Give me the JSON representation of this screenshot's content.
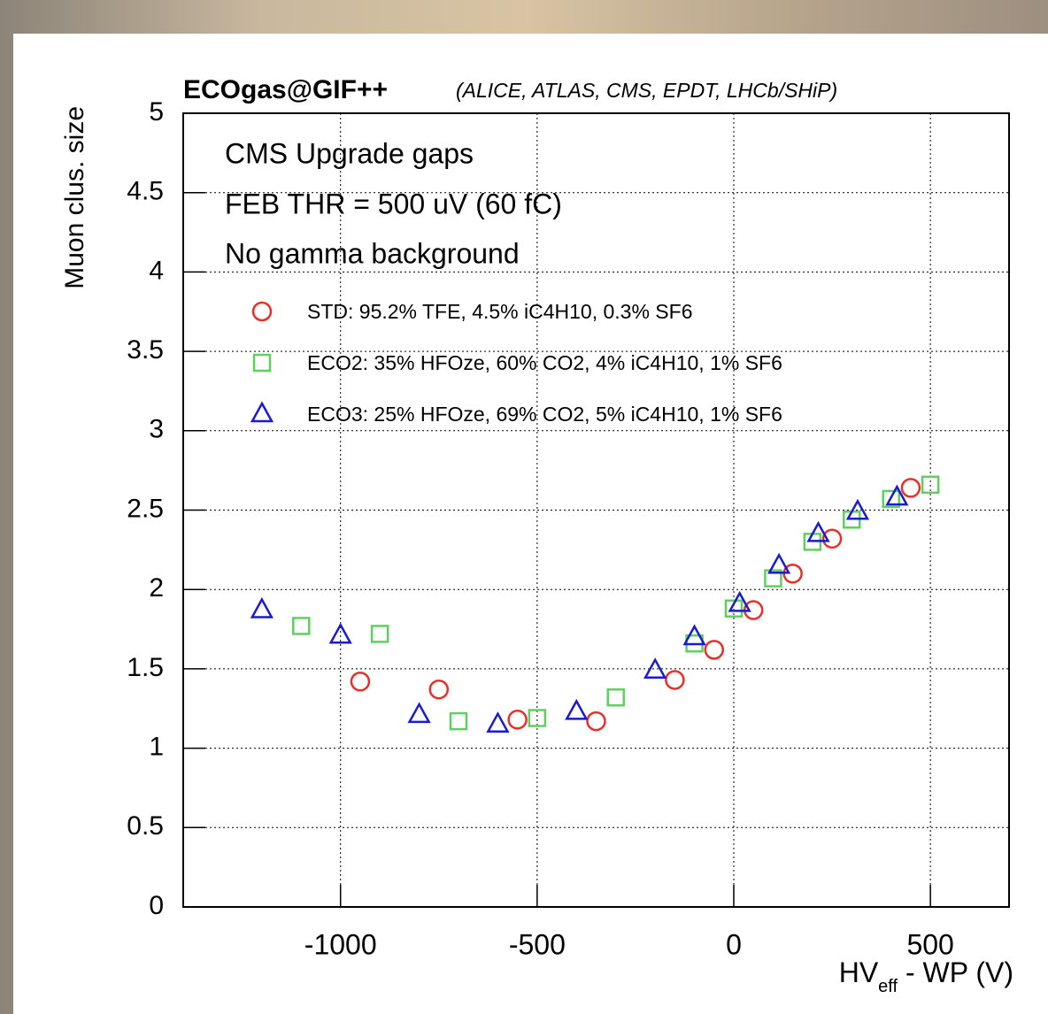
{
  "chart_data": {
    "type": "scatter",
    "title": "ECOgas@GIF++",
    "subtitle": "(ALICE, ATLAS, CMS, EPDT, LHCb/SHiP)",
    "annotations": [
      "CMS Upgrade gaps",
      "FEB THR = 500 uV (60 fC)",
      "No gamma background"
    ],
    "ylabel": "Muon clus. size",
    "xlabel": {
      "main": "HV",
      "sub": "eff",
      "rest": " - WP (V)"
    },
    "xlim": [
      -1400,
      700
    ],
    "ylim": [
      0,
      5
    ],
    "xticks": [
      -1000,
      -500,
      0,
      500
    ],
    "yticks": [
      0,
      0.5,
      1,
      1.5,
      2,
      2.5,
      3,
      3.5,
      4,
      4.5,
      5
    ],
    "grid": true,
    "legend": "top-left",
    "series": [
      {
        "name": "STD: 95.2% TFE, 4.5% iC4H10, 0.3% SF6",
        "color": "#e8302a",
        "marker": "circle",
        "x": [
          -950,
          -750,
          -550,
          -350,
          -150,
          -50,
          50,
          150,
          250,
          450
        ],
        "values": [
          1.42,
          1.37,
          1.18,
          1.17,
          1.43,
          1.62,
          1.87,
          2.1,
          2.32,
          2.64
        ]
      },
      {
        "name": "ECO2: 35% HFOze, 60% CO2, 4% iC4H10, 1% SF6",
        "color": "#5fcf5f",
        "marker": "square",
        "x": [
          -1100,
          -900,
          -700,
          -500,
          -300,
          -100,
          0,
          100,
          200,
          300,
          400,
          500
        ],
        "values": [
          1.77,
          1.72,
          1.17,
          1.19,
          1.32,
          1.66,
          1.88,
          2.07,
          2.3,
          2.44,
          2.57,
          2.66
        ]
      },
      {
        "name": "ECO3: 25% HFOze, 69% CO2, 5% iC4H10, 1% SF6",
        "color": "#1a1ad0",
        "marker": "triangle",
        "x": [
          -1200,
          -1000,
          -800,
          -600,
          -400,
          -200,
          -100,
          15,
          115,
          215,
          315,
          415
        ],
        "values": [
          1.87,
          1.71,
          1.21,
          1.15,
          1.23,
          1.49,
          1.7,
          1.91,
          2.15,
          2.35,
          2.49,
          2.58
        ]
      }
    ]
  }
}
